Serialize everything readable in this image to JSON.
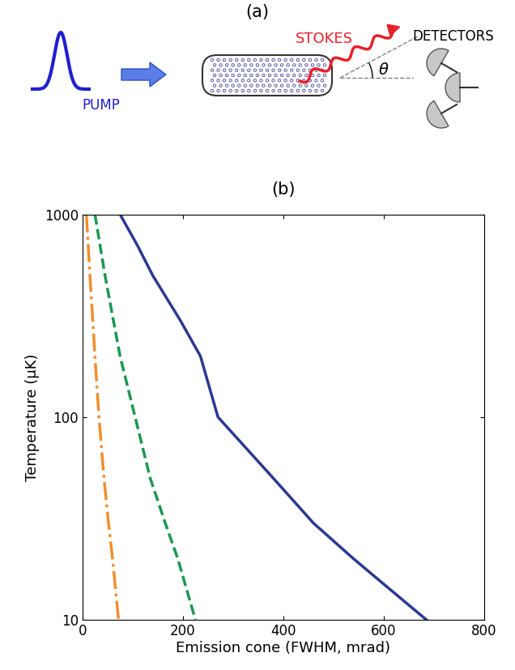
{
  "diagram": {
    "label": "(a)",
    "pump": "PUMP",
    "stokes": "STOKES",
    "detectors": "DETECTORS",
    "angle": "θ"
  },
  "chart_data": {
    "type": "line",
    "title": "(b)",
    "x_label": "Emission cone (FWHM, mrad)",
    "y_label": "Temperature (μK)",
    "log": "y",
    "xlim": [
      0,
      800
    ],
    "xticks": [
      0,
      200,
      400,
      600,
      800
    ],
    "ylim": [
      10,
      1000
    ],
    "yticks": [
      10,
      100,
      1000
    ],
    "series": [
      {
        "color": "#2b3990",
        "line_style": "solid",
        "x": [
          75,
          110,
          140,
          195,
          235,
          270,
          380,
          460,
          540,
          600,
          685
        ],
        "values": [
          1000,
          700,
          500,
          300,
          200,
          100,
          50,
          30,
          20,
          15,
          10
        ]
      },
      {
        "color": "#1a9850",
        "line_style": "dashed",
        "x": [
          25,
          45,
          75,
          105,
          135,
          165,
          190,
          225
        ],
        "values": [
          1000,
          500,
          200,
          100,
          50,
          30,
          20,
          10
        ]
      },
      {
        "color": "#f28e2b",
        "line_style": "dashdot",
        "x": [
          8,
          15,
          25,
          33,
          43,
          52,
          60,
          72
        ],
        "values": [
          1000,
          500,
          200,
          100,
          50,
          30,
          20,
          10
        ]
      }
    ]
  }
}
